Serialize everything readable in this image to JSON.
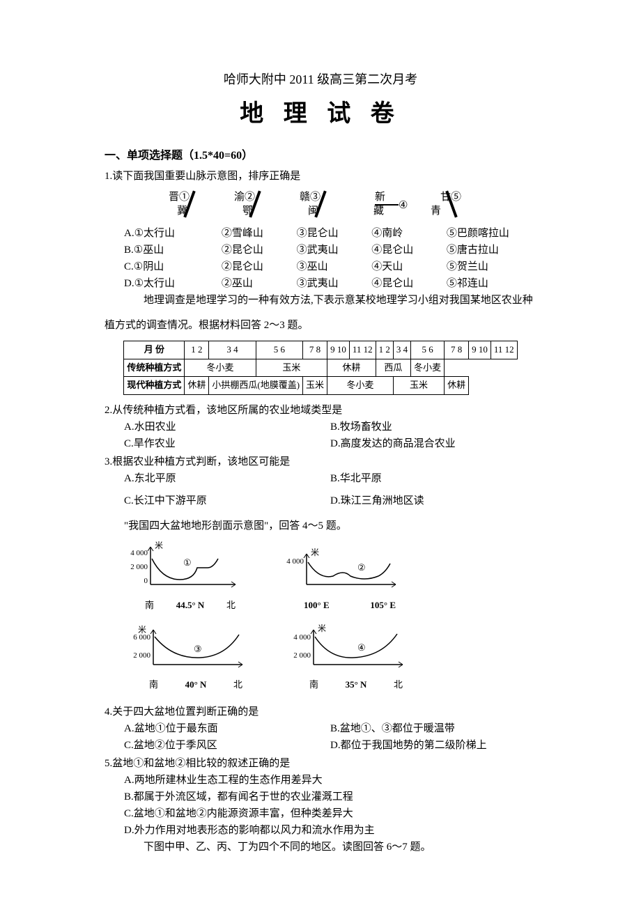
{
  "header": {
    "subtitle": "哈师大附中 2011 级高三第二次月考",
    "title": "地 理 试 卷"
  },
  "section1": {
    "heading": "一、单项选择题（1.5*40=60）"
  },
  "q1": {
    "stem": "1.读下面我国重要山脉示意图，排序正确是",
    "blocks": [
      {
        "top": "晋",
        "bot": "冀",
        "num": "①",
        "shape": "diag"
      },
      {
        "top": "渝",
        "bot": "鄂",
        "num": "②",
        "shape": "diag"
      },
      {
        "top": "赣",
        "bot": "闽",
        "num": "③",
        "shape": "diag"
      },
      {
        "top": "新",
        "bot": "藏",
        "num": "④",
        "shape": "dash"
      },
      {
        "top": "甘",
        "bot": "青",
        "num": "⑤",
        "shape": "diagrev"
      }
    ],
    "choices": [
      {
        "label": "A.",
        "c1": "①太行山",
        "c2": "②雪峰山",
        "c3": "③昆仑山",
        "c4": "④南岭",
        "c5": "⑤巴颜喀拉山"
      },
      {
        "label": "B.",
        "c1": "①巫山",
        "c2": "②昆仑山",
        "c3": "③武夷山",
        "c4": "④昆仑山",
        "c5": "⑤唐古拉山"
      },
      {
        "label": "C.",
        "c1": "①阴山",
        "c2": "②昆仑山",
        "c3": "③巫山",
        "c4": "④天山",
        "c5": "⑤贺兰山"
      },
      {
        "label": "D.",
        "c1": "①太行山",
        "c2": "②巫山",
        "c3": "③武夷山",
        "c4": "④昆仑山",
        "c5": "⑤祁连山"
      }
    ],
    "intro": "地理调查是地理学习的一种有效方法,下表示意某校地理学习小组对我国某地区农业种",
    "intro2": "植方式的调查情况。根据材料回答 2～3 题。"
  },
  "table": {
    "header_label": "月 份",
    "months": [
      "1",
      "2",
      "3",
      "4",
      "5",
      "6",
      "7",
      "8",
      "9",
      "10",
      "11",
      "12",
      "1",
      "2",
      "3",
      "4",
      "5",
      "6",
      "7",
      "8",
      "9",
      "10",
      "11",
      "12"
    ],
    "row1_label": "传统种植方式",
    "row1_cells": [
      "冬小麦",
      "玉米",
      "休耕",
      "西瓜",
      "冬小麦"
    ],
    "row1_spans": [
      4,
      3,
      3,
      4,
      2
    ],
    "row2_label": "现代种植方式",
    "row2_cells": [
      "休耕",
      "小拱棚西瓜(地膜覆盖)",
      "玉米",
      "冬小麦",
      "玉米",
      "休耕"
    ],
    "row2_spans": [
      1,
      3,
      2,
      5,
      3,
      2
    ]
  },
  "q2": {
    "stem": "2.从传统种植方式看，该地区所属的农业地域类型是",
    "A": "A.水田农业",
    "B": "B.牧场畜牧业",
    "C": "C.旱作农业",
    "D": "D.高度发达的商品混合农业"
  },
  "q3": {
    "stem": "3.根据农业种植方式判断，该地区可能是",
    "A": "A.东北平原",
    "B": "B.华北平原",
    "C": "C.长江中下游平原",
    "D": "D.珠江三角洲地区读"
  },
  "basin_intro": "\"我国四大盆地地形剖面示意图\"，回答 4～5 题。",
  "basins": {
    "ylabel": "米",
    "b1": {
      "num": "①",
      "yticks": [
        "4 000",
        "2 000",
        "0"
      ],
      "south": "南",
      "mid": "44.5° N",
      "north": "北"
    },
    "b2": {
      "num": "②",
      "yticks": [
        "4 000"
      ],
      "left": "100° E",
      "right": "105° E"
    },
    "b3": {
      "num": "③",
      "yticks": [
        "6 000",
        "2 000"
      ],
      "south": "南",
      "mid": "40° N",
      "north": "北"
    },
    "b4": {
      "num": "④",
      "yticks": [
        "4 000",
        "2 000"
      ],
      "south": "南",
      "mid": "35° N",
      "north": "北"
    }
  },
  "q4": {
    "stem": "4.关于四大盆地位置判断正确的是",
    "A": "A.盆地①位于最东面",
    "B": "B.盆地①、③都位于暖温带",
    "C": "C.盆地②位于季风区",
    "D": "D.都位于我国地势的第二级阶梯上"
  },
  "q5": {
    "stem": "5.盆地①和盆地②相比较的叙述正确的是",
    "A": "A.两地所建林业生态工程的生态作用差异大",
    "B": "B.都属于外流区域，都有闻名于世的农业灌溉工程",
    "C": "C.盆地①和盆地②内能源资源丰富，但种类差异大",
    "D": "D.外力作用对地表形态的影响都以风力和流水作用为主",
    "tail": "下图中甲、乙、丙、丁为四个不同的地区。读图回答 6～7 题。"
  }
}
